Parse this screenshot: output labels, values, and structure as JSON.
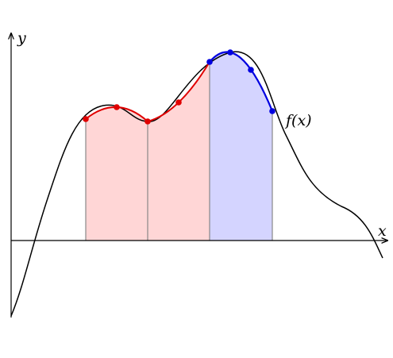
{
  "axes": {
    "y_label": "y",
    "x_label": "x"
  },
  "curve_label": "f(x)"
}
